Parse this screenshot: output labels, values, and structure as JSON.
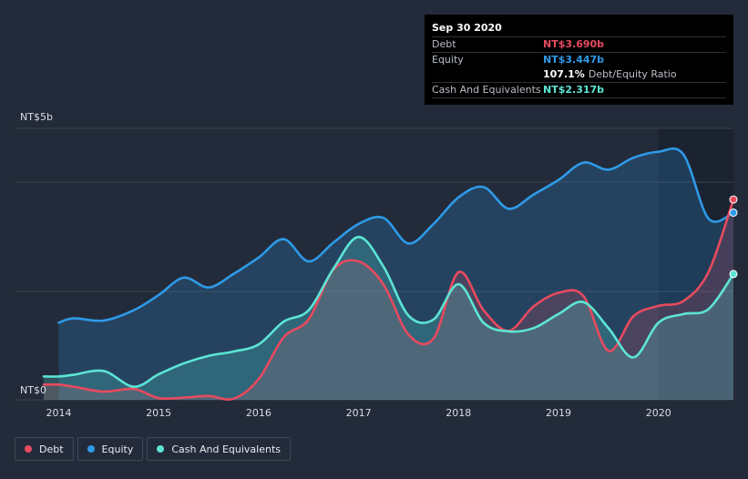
{
  "tooltip": {
    "date": "Sep 30 2020",
    "rows": [
      {
        "label": "Debt",
        "value": "NT$3.690b",
        "color": "#e84a5f"
      },
      {
        "label": "Equity",
        "value": "NT$3.447b",
        "color": "#2e9ae8"
      }
    ],
    "ratio_value": "107.1%",
    "ratio_label": "Debt/Equity Ratio",
    "cash": {
      "label": "Cash And Equivalents",
      "value": "NT$2.317b",
      "color": "#5ce5d5"
    }
  },
  "legend": [
    {
      "label": "Debt",
      "color": "#e84a5f"
    },
    {
      "label": "Equity",
      "color": "#2e9ae8"
    },
    {
      "label": "Cash And Equivalents",
      "color": "#5ce5d5"
    }
  ],
  "chart_data": {
    "type": "area",
    "title": "",
    "xlabel": "",
    "ylabel": "",
    "y_top_label": "NT$5b",
    "y_bottom_label": "NT$0",
    "xlim": [
      2013.85,
      2020.75
    ],
    "ylim": [
      0,
      5
    ],
    "x_ticks": [
      2014,
      2015,
      2016,
      2017,
      2018,
      2019,
      2020
    ],
    "x_tick_labels": [
      "2014",
      "2015",
      "2016",
      "2017",
      "2018",
      "2019",
      "2020"
    ],
    "series": [
      {
        "name": "Equity",
        "color": "#2e9ae8",
        "points": [
          [
            2014.0,
            1.42
          ],
          [
            2014.15,
            1.5
          ],
          [
            2014.45,
            1.46
          ],
          [
            2014.75,
            1.65
          ],
          [
            2015.0,
            1.93
          ],
          [
            2015.25,
            2.25
          ],
          [
            2015.5,
            2.07
          ],
          [
            2015.75,
            2.32
          ],
          [
            2016.0,
            2.62
          ],
          [
            2016.25,
            2.96
          ],
          [
            2016.5,
            2.55
          ],
          [
            2016.75,
            2.9
          ],
          [
            2017.0,
            3.24
          ],
          [
            2017.25,
            3.35
          ],
          [
            2017.5,
            2.88
          ],
          [
            2017.75,
            3.24
          ],
          [
            2018.0,
            3.73
          ],
          [
            2018.25,
            3.92
          ],
          [
            2018.5,
            3.52
          ],
          [
            2018.75,
            3.78
          ],
          [
            2019.0,
            4.05
          ],
          [
            2019.25,
            4.37
          ],
          [
            2019.5,
            4.24
          ],
          [
            2019.75,
            4.46
          ],
          [
            2020.0,
            4.57
          ],
          [
            2020.25,
            4.52
          ],
          [
            2020.5,
            3.34
          ],
          [
            2020.75,
            3.447
          ]
        ]
      },
      {
        "name": "Debt",
        "color": "#e84a5f",
        "points": [
          [
            2013.85,
            0.28
          ],
          [
            2014.0,
            0.28
          ],
          [
            2014.15,
            0.24
          ],
          [
            2014.45,
            0.15
          ],
          [
            2014.75,
            0.2
          ],
          [
            2015.0,
            0.03
          ],
          [
            2015.25,
            0.04
          ],
          [
            2015.5,
            0.07
          ],
          [
            2015.75,
            0.02
          ],
          [
            2016.0,
            0.38
          ],
          [
            2016.25,
            1.15
          ],
          [
            2016.5,
            1.48
          ],
          [
            2016.75,
            2.4
          ],
          [
            2017.0,
            2.55
          ],
          [
            2017.25,
            2.12
          ],
          [
            2017.5,
            1.2
          ],
          [
            2017.75,
            1.13
          ],
          [
            2018.0,
            2.35
          ],
          [
            2018.25,
            1.65
          ],
          [
            2018.5,
            1.27
          ],
          [
            2018.75,
            1.72
          ],
          [
            2019.0,
            1.97
          ],
          [
            2019.25,
            1.91
          ],
          [
            2019.5,
            0.9
          ],
          [
            2019.75,
            1.54
          ],
          [
            2020.0,
            1.73
          ],
          [
            2020.25,
            1.82
          ],
          [
            2020.5,
            2.35
          ],
          [
            2020.75,
            3.69
          ]
        ]
      },
      {
        "name": "Cash And Equivalents",
        "color": "#5ce5d5",
        "points": [
          [
            2013.85,
            0.43
          ],
          [
            2014.0,
            0.43
          ],
          [
            2014.15,
            0.46
          ],
          [
            2014.45,
            0.53
          ],
          [
            2014.75,
            0.24
          ],
          [
            2015.0,
            0.47
          ],
          [
            2015.25,
            0.67
          ],
          [
            2015.5,
            0.81
          ],
          [
            2015.75,
            0.89
          ],
          [
            2016.0,
            1.02
          ],
          [
            2016.25,
            1.44
          ],
          [
            2016.5,
            1.65
          ],
          [
            2016.75,
            2.42
          ],
          [
            2017.0,
            3.0
          ],
          [
            2017.25,
            2.45
          ],
          [
            2017.5,
            1.55
          ],
          [
            2017.75,
            1.48
          ],
          [
            2018.0,
            2.13
          ],
          [
            2018.25,
            1.42
          ],
          [
            2018.5,
            1.26
          ],
          [
            2018.75,
            1.32
          ],
          [
            2019.0,
            1.58
          ],
          [
            2019.25,
            1.8
          ],
          [
            2019.5,
            1.32
          ],
          [
            2019.75,
            0.78
          ],
          [
            2020.0,
            1.42
          ],
          [
            2020.25,
            1.58
          ],
          [
            2020.5,
            1.67
          ],
          [
            2020.75,
            2.317
          ]
        ]
      }
    ]
  }
}
